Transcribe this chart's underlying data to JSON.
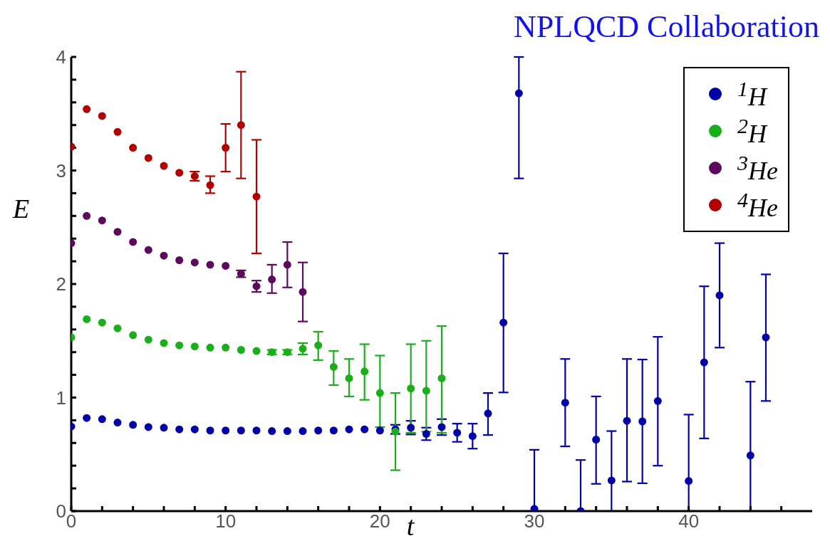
{
  "chart_data": {
    "type": "scatter",
    "title": "NPLQCD Collaboration",
    "xlabel": "t",
    "ylabel": "E",
    "xlim": [
      0,
      48
    ],
    "ylim": [
      0,
      4
    ],
    "xticks": [
      0,
      {
        "value": 2,
        "label": null
      },
      {
        "value": 4,
        "label": null
      },
      {
        "value": 6,
        "label": null
      },
      {
        "value": 8,
        "label": null
      },
      10,
      {
        "value": 12,
        "label": null
      },
      {
        "value": 14,
        "label": null
      },
      {
        "value": 16,
        "label": null
      },
      {
        "value": 18,
        "label": null
      },
      20,
      {
        "value": 22,
        "label": null
      },
      {
        "value": 24,
        "label": null
      },
      {
        "value": 26,
        "label": null
      },
      {
        "value": 28,
        "label": null
      },
      30,
      {
        "value": 32,
        "label": null
      },
      {
        "value": 34,
        "label": null
      },
      {
        "value": 36,
        "label": null
      },
      {
        "value": 38,
        "label": null
      },
      40,
      {
        "value": 42,
        "label": null
      },
      {
        "value": 44,
        "label": null
      },
      {
        "value": 46,
        "label": null
      }
    ],
    "yticks": [
      0,
      {
        "value": 0.2,
        "label": null
      },
      {
        "value": 0.4,
        "label": null
      },
      {
        "value": 0.6,
        "label": null
      },
      {
        "value": 0.8,
        "label": null
      },
      1,
      {
        "value": 1.2,
        "label": null
      },
      {
        "value": 1.4,
        "label": null
      },
      {
        "value": 1.6,
        "label": null
      },
      {
        "value": 1.8,
        "label": null
      },
      2,
      {
        "value": 2.2,
        "label": null
      },
      {
        "value": 2.4,
        "label": null
      },
      {
        "value": 2.6,
        "label": null
      },
      {
        "value": 2.8,
        "label": null
      },
      3,
      {
        "value": 3.2,
        "label": null
      },
      {
        "value": 3.4,
        "label": null
      },
      {
        "value": 3.6,
        "label": null
      },
      {
        "value": 3.8,
        "label": null
      },
      4
    ],
    "legend": "top right",
    "marker": "circle",
    "series": [
      {
        "name": "$^{1}$H",
        "color": "#0000a8",
        "x": [
          0,
          1,
          2,
          3,
          4,
          5,
          6,
          7,
          8,
          9,
          10,
          11,
          12,
          13,
          14,
          15,
          16,
          17,
          18,
          19,
          20,
          21,
          22,
          23,
          24,
          25,
          26,
          27,
          28,
          29,
          30,
          32,
          33,
          34,
          35,
          36,
          37,
          38,
          40,
          41,
          42,
          44,
          45
        ],
        "values": [
          0.745,
          0.82,
          0.81,
          0.78,
          0.76,
          0.74,
          0.735,
          0.72,
          0.72,
          0.71,
          0.71,
          0.71,
          0.71,
          0.705,
          0.705,
          0.705,
          0.71,
          0.71,
          0.72,
          0.72,
          0.71,
          0.72,
          0.735,
          0.68,
          0.74,
          0.69,
          0.66,
          0.86,
          1.66,
          3.68,
          0.02,
          0.955,
          0,
          0.63,
          0.27,
          0.795,
          0.79,
          0.97,
          0.265,
          1.31,
          1.9,
          0.49,
          1.53
        ],
        "errors": [
          null,
          null,
          null,
          null,
          null,
          null,
          null,
          null,
          null,
          null,
          null,
          null,
          null,
          null,
          null,
          null,
          null,
          null,
          null,
          null,
          null,
          0.04,
          0.06,
          0.055,
          0.07,
          0.08,
          0.11,
          [
            0.67,
            1.04
          ],
          [
            1.045,
            2.27
          ],
          [
            2.93,
            4
          ],
          [
            0,
            0.54
          ],
          [
            0.57,
            1.34
          ],
          [
            0,
            0.45
          ],
          [
            0.24,
            1.01
          ],
          [
            0,
            0.705
          ],
          [
            0.26,
            1.34
          ],
          [
            0.245,
            1.335
          ],
          [
            0.4,
            1.535
          ],
          [
            0,
            0.85
          ],
          [
            0.64,
            1.98
          ],
          0.46,
          [
            0,
            1.14
          ],
          [
            0.97,
            2.085
          ]
        ]
      },
      {
        "name": "$^{2}$H",
        "color": "#1aae1a",
        "x": [
          0,
          1,
          2,
          3,
          4,
          5,
          6,
          7,
          8,
          9,
          10,
          11,
          12,
          13,
          14,
          15,
          16,
          17,
          18,
          19,
          20,
          21,
          22,
          23,
          24
        ],
        "values": [
          1.53,
          1.69,
          1.66,
          1.61,
          1.55,
          1.51,
          1.48,
          1.46,
          1.45,
          1.44,
          1.44,
          1.42,
          1.41,
          1.4,
          1.4,
          1.43,
          1.46,
          1.27,
          1.17,
          1.23,
          1.04,
          0.7,
          1.08,
          1.06,
          1.17
        ],
        "errors": [
          null,
          null,
          null,
          null,
          null,
          null,
          null,
          null,
          null,
          null,
          null,
          null,
          null,
          0.02,
          0.02,
          0.05,
          [
            1.33,
            1.58
          ],
          [
            1.11,
            1.41
          ],
          [
            1.01,
            1.34
          ],
          [
            0.98,
            1.47
          ],
          [
            0.74,
            1.37
          ],
          [
            0.36,
            1.04
          ],
          [
            0.69,
            1.47
          ],
          [
            0.7,
            1.5
          ],
          [
            0.69,
            1.63
          ]
        ]
      },
      {
        "name": "$^{3}$He",
        "color": "#5c0b5c",
        "x": [
          0,
          1,
          2,
          3,
          4,
          5,
          6,
          7,
          8,
          9,
          10,
          11,
          12,
          13,
          14,
          15
        ],
        "values": [
          2.36,
          2.6,
          2.56,
          2.46,
          2.37,
          2.3,
          2.25,
          2.21,
          2.19,
          2.17,
          2.16,
          2.09,
          1.98,
          2.04,
          2.17,
          1.93
        ],
        "errors": [
          null,
          null,
          null,
          null,
          null,
          null,
          null,
          null,
          null,
          null,
          null,
          0.03,
          0.05,
          [
            1.92,
            2.17
          ],
          [
            1.97,
            2.37
          ],
          [
            1.67,
            2.19
          ]
        ]
      },
      {
        "name": "$^{4}$He",
        "color": "#b00000",
        "x": [
          0,
          1,
          2,
          3,
          4,
          5,
          6,
          7,
          8,
          9,
          10,
          11,
          12
        ],
        "values": [
          3.21,
          3.54,
          3.48,
          3.34,
          3.2,
          3.11,
          3.04,
          2.98,
          2.95,
          2.87,
          3.2,
          3.4,
          2.77
        ],
        "errors": [
          null,
          null,
          null,
          null,
          null,
          null,
          null,
          null,
          0.04,
          [
            2.8,
            2.95
          ],
          [
            2.99,
            3.41
          ],
          [
            2.93,
            3.87
          ],
          [
            2.27,
            3.27
          ]
        ]
      }
    ]
  }
}
